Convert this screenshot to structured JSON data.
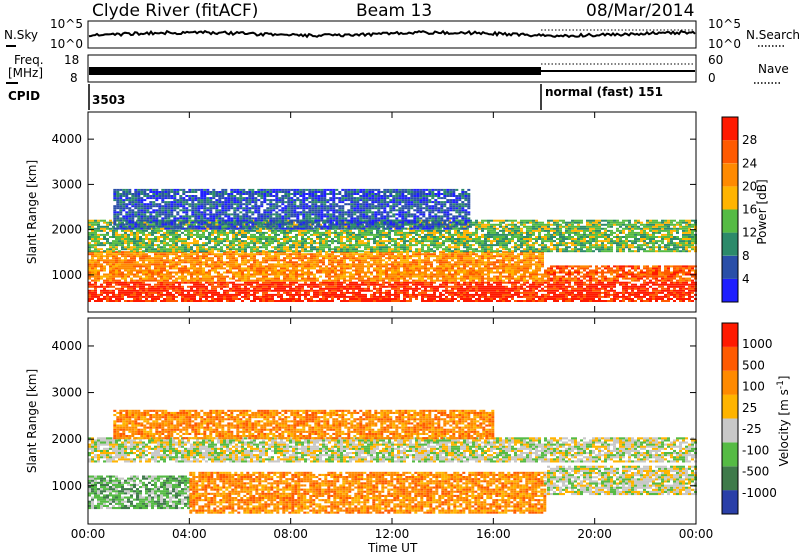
{
  "header": {
    "station": "Clyde River (fitACF)",
    "beam": "Beam 13",
    "date": "08/Mar/2014"
  },
  "noise_panel": {
    "left_label": "N.Sky",
    "left_ticks": [
      "10^5",
      "10^0"
    ],
    "right_label": "N.Search",
    "right_ticks": [
      "10^5",
      "10^0"
    ]
  },
  "freq_panel": {
    "left_label_line1": "Freq.",
    "left_label_line2": "[MHz]",
    "left_ticks": [
      "18",
      "8"
    ],
    "right_label": "Nave",
    "right_ticks": [
      "60",
      "0"
    ]
  },
  "cpid_panel": {
    "label": "CPID",
    "segments": [
      {
        "text": "3503",
        "start_hour": 0
      },
      {
        "text": "normal (fast) 151",
        "start_hour": 18
      }
    ]
  },
  "time_axis": {
    "label": "Time UT",
    "ticks": [
      "00:00",
      "04:00",
      "08:00",
      "12:00",
      "16:00",
      "20:00",
      "00:00"
    ]
  },
  "chart_data": [
    {
      "type": "heatmap",
      "title": "Power",
      "xlabel": "Time UT",
      "ylabel": "Slant Range [km]",
      "colorbar_label": "Power [dB]",
      "xlim_hours": [
        0,
        24
      ],
      "ylim": [
        180,
        4600
      ],
      "y_ticks": [
        1000,
        2000,
        3000,
        4000
      ],
      "colorbar_ticks": [
        "28",
        "24",
        "20",
        "16",
        "12",
        "8",
        "4"
      ],
      "colorscale": [
        "#1f1fff",
        "#2a4fa8",
        "#2c8a6a",
        "#55bb44",
        "#ffb400",
        "#ff8a00",
        "#ff5a00",
        "#ff1a00"
      ],
      "bands": [
        {
          "range_km": [
            400,
            850
          ],
          "hours": [
            0,
            24
          ],
          "level": 7
        },
        {
          "range_km": [
            850,
            1500
          ],
          "hours": [
            0,
            18
          ],
          "level": 5
        },
        {
          "range_km": [
            850,
            1200
          ],
          "hours": [
            18,
            24
          ],
          "level": 6
        },
        {
          "range_km": [
            1500,
            2200
          ],
          "hours": [
            0,
            24
          ],
          "level": 3
        },
        {
          "range_km": [
            2000,
            2900
          ],
          "hours": [
            1,
            15
          ],
          "level": 1
        }
      ]
    },
    {
      "type": "heatmap",
      "title": "Velocity",
      "xlabel": "Time UT",
      "ylabel": "Slant Range [km]",
      "colorbar_label": "Velocity [m s^-1]",
      "xlim_hours": [
        0,
        24
      ],
      "ylim": [
        180,
        4600
      ],
      "y_ticks": [
        1000,
        2000,
        3000,
        4000
      ],
      "colorbar_ticks": [
        "1000",
        "500",
        "100",
        "25",
        "-25",
        "-100",
        "-500",
        "-1000"
      ],
      "colorscale": [
        "#2a3fa8",
        "#3f7a4a",
        "#55bb44",
        "#c8c8c8",
        "#ffb400",
        "#ff8a00",
        "#ff5a00",
        "#ff1a00"
      ],
      "bands": [
        {
          "range_km": [
            500,
            1200
          ],
          "hours": [
            0,
            4
          ],
          "level": 2
        },
        {
          "range_km": [
            400,
            1300
          ],
          "hours": [
            4,
            18
          ],
          "level": 5
        },
        {
          "range_km": [
            800,
            1400
          ],
          "hours": [
            18,
            24
          ],
          "level": 3
        },
        {
          "range_km": [
            1500,
            2000
          ],
          "hours": [
            0,
            24
          ],
          "level": 3
        },
        {
          "range_km": [
            2000,
            2600
          ],
          "hours": [
            1,
            16
          ],
          "level": 5
        }
      ]
    }
  ]
}
